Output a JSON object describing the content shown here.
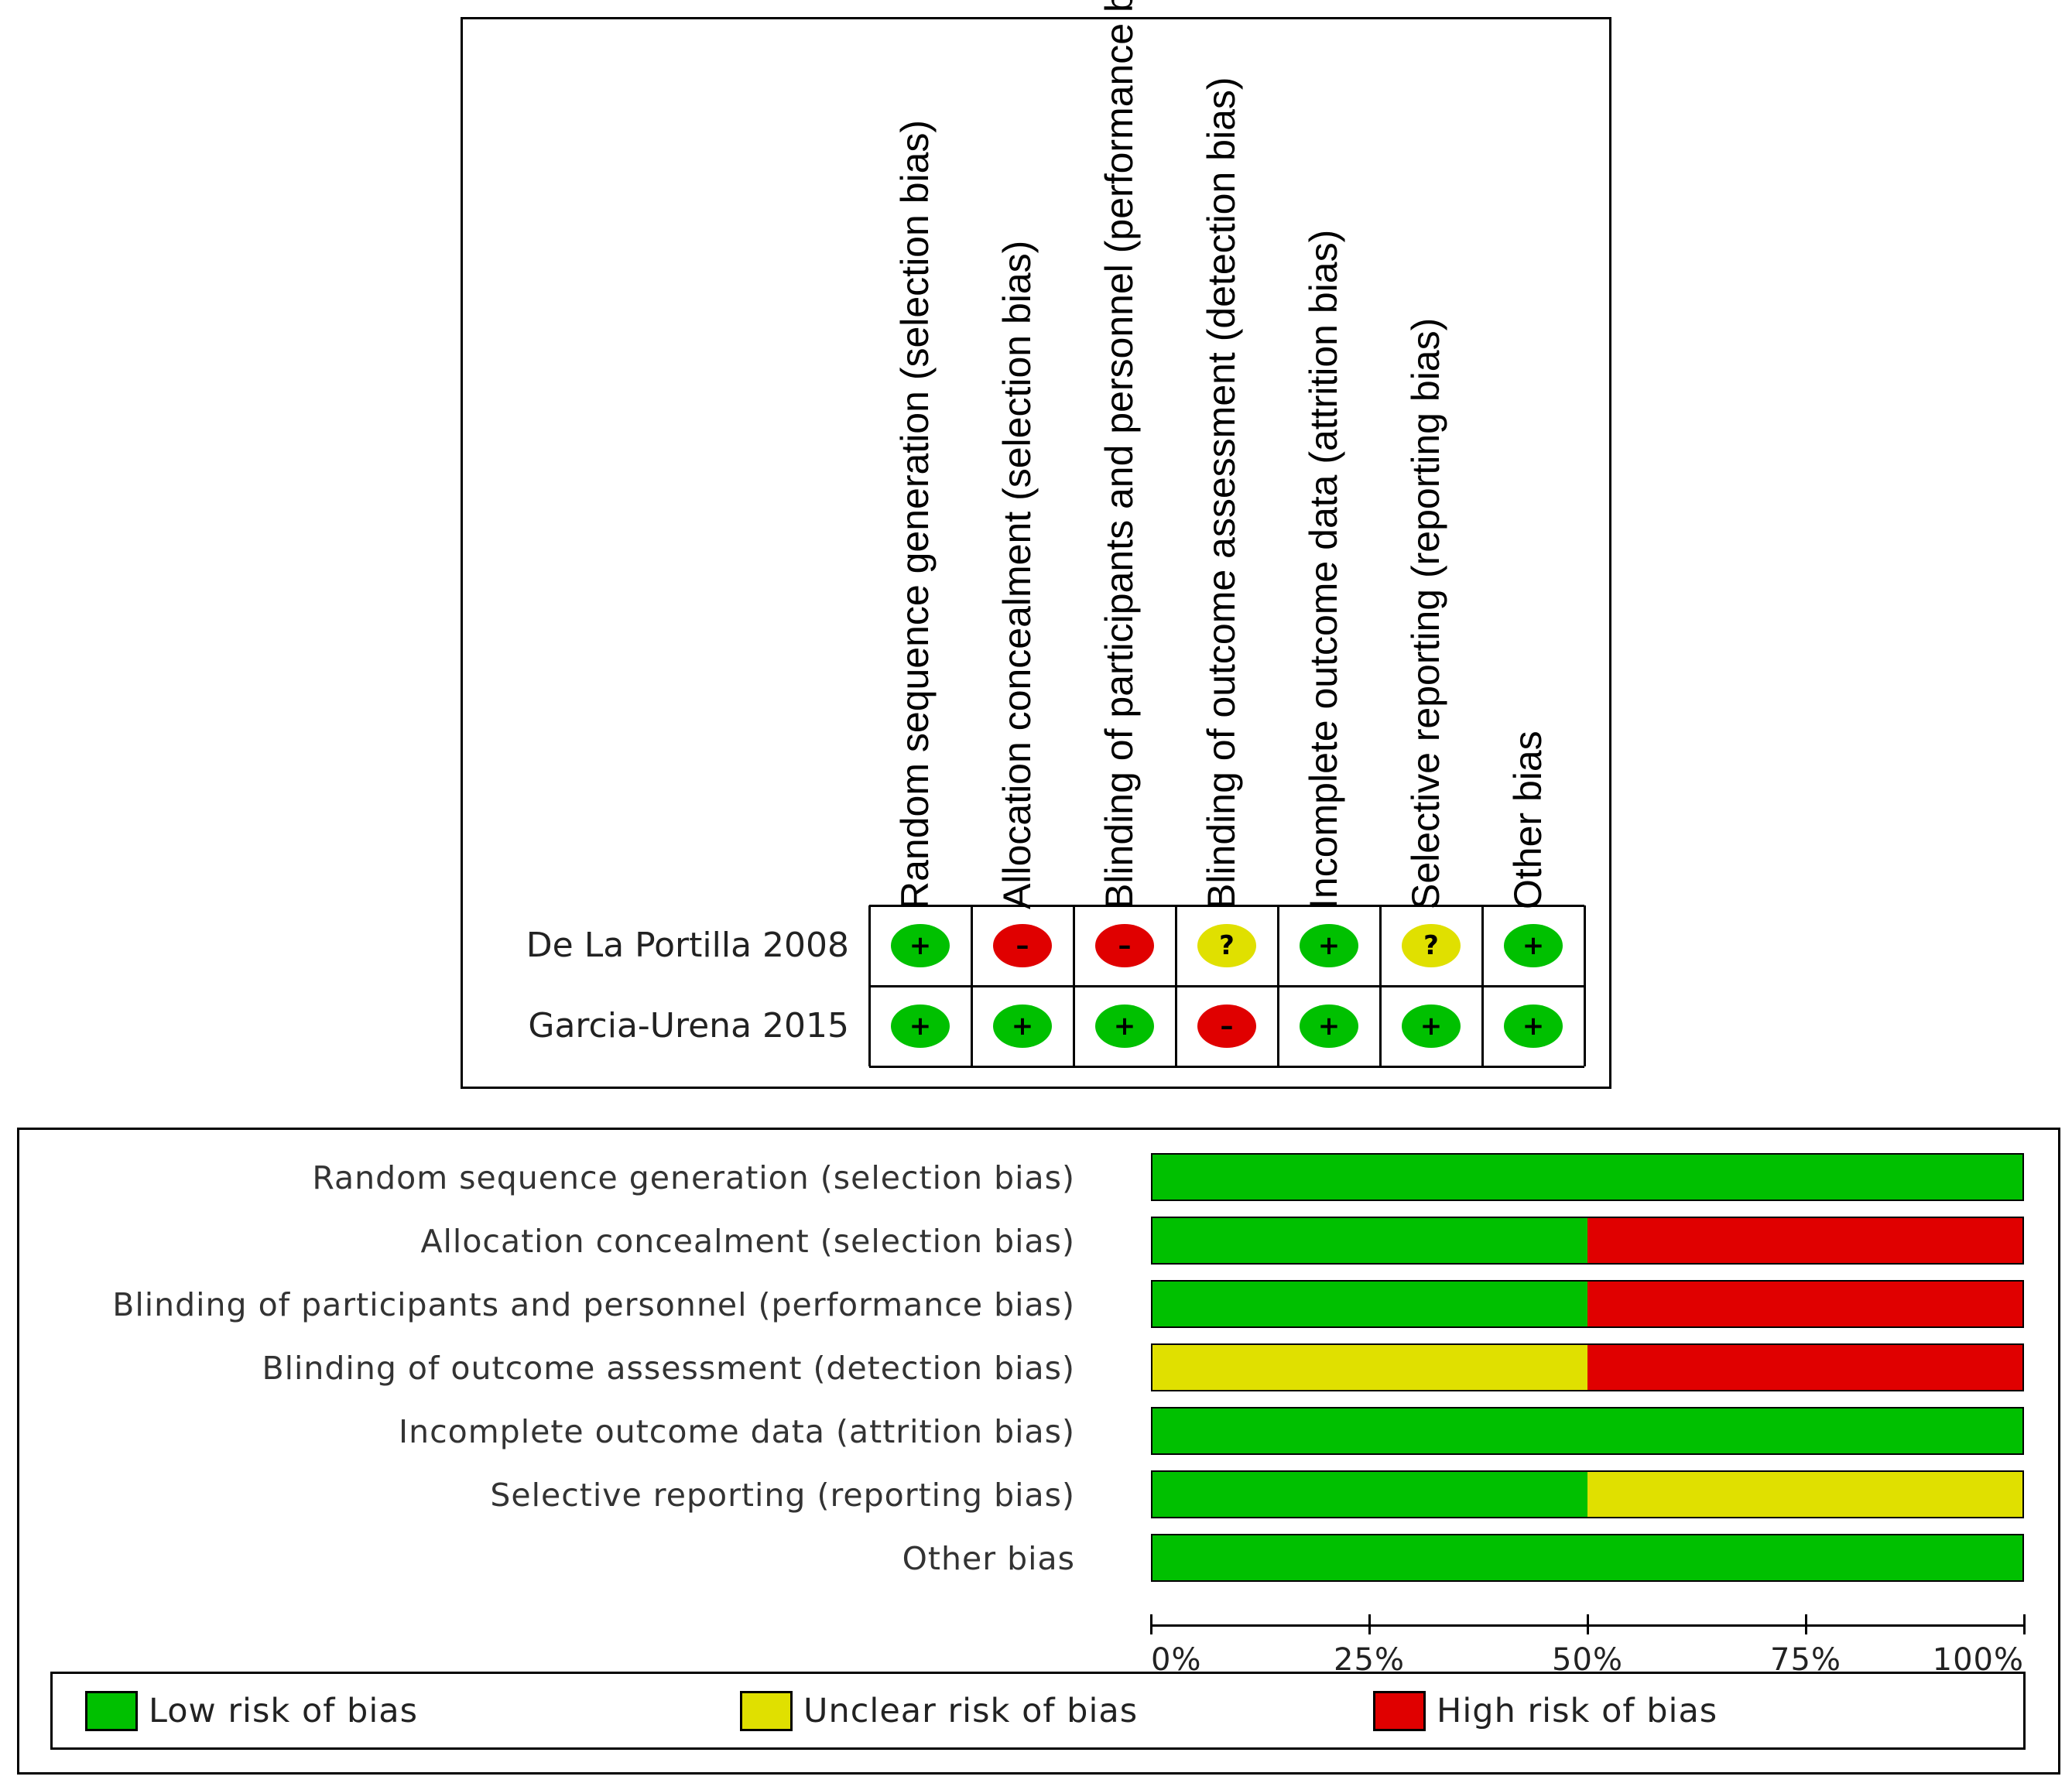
{
  "colors": {
    "low": "#00c000",
    "unclear": "#e0e000",
    "high": "#e00000"
  },
  "domains": [
    "Random sequence generation (selection bias)",
    "Allocation concealment (selection bias)",
    "Blinding of participants and personnel (performance bias)",
    "Blinding of outcome assessment (detection bias)",
    "Incomplete outcome data (attrition bias)",
    "Selective reporting (reporting bias)",
    "Other bias"
  ],
  "studies": [
    {
      "name": "De La Portilla 2008",
      "judgements": [
        "low",
        "high",
        "high",
        "unclear",
        "low",
        "unclear",
        "low"
      ]
    },
    {
      "name": "Garcia-Urena 2015",
      "judgements": [
        "low",
        "low",
        "low",
        "high",
        "low",
        "low",
        "low"
      ]
    }
  ],
  "symbols": {
    "low": "+",
    "high": "–",
    "unclear": "?"
  },
  "chart_data": {
    "type": "bar",
    "orientation": "horizontal-stacked-percent",
    "categories": [
      "Random sequence generation (selection bias)",
      "Allocation concealment (selection bias)",
      "Blinding of participants and personnel (performance bias)",
      "Blinding of outcome assessment (detection bias)",
      "Incomplete outcome data (attrition bias)",
      "Selective reporting (reporting bias)",
      "Other bias"
    ],
    "series": [
      {
        "name": "Low risk of bias",
        "key": "low",
        "values": [
          100,
          50,
          50,
          0,
          100,
          50,
          100
        ]
      },
      {
        "name": "Unclear risk of bias",
        "key": "unclear",
        "values": [
          0,
          0,
          0,
          50,
          0,
          50,
          0
        ]
      },
      {
        "name": "High risk of bias",
        "key": "high",
        "values": [
          0,
          50,
          50,
          50,
          0,
          0,
          0
        ]
      }
    ],
    "xlim": [
      0,
      100
    ],
    "x_ticks": [
      "0%",
      "25%",
      "50%",
      "75%",
      "100%"
    ],
    "legend": [
      "Low risk of bias",
      "Unclear risk of bias",
      "High risk of bias"
    ],
    "legend_position": "bottom"
  }
}
